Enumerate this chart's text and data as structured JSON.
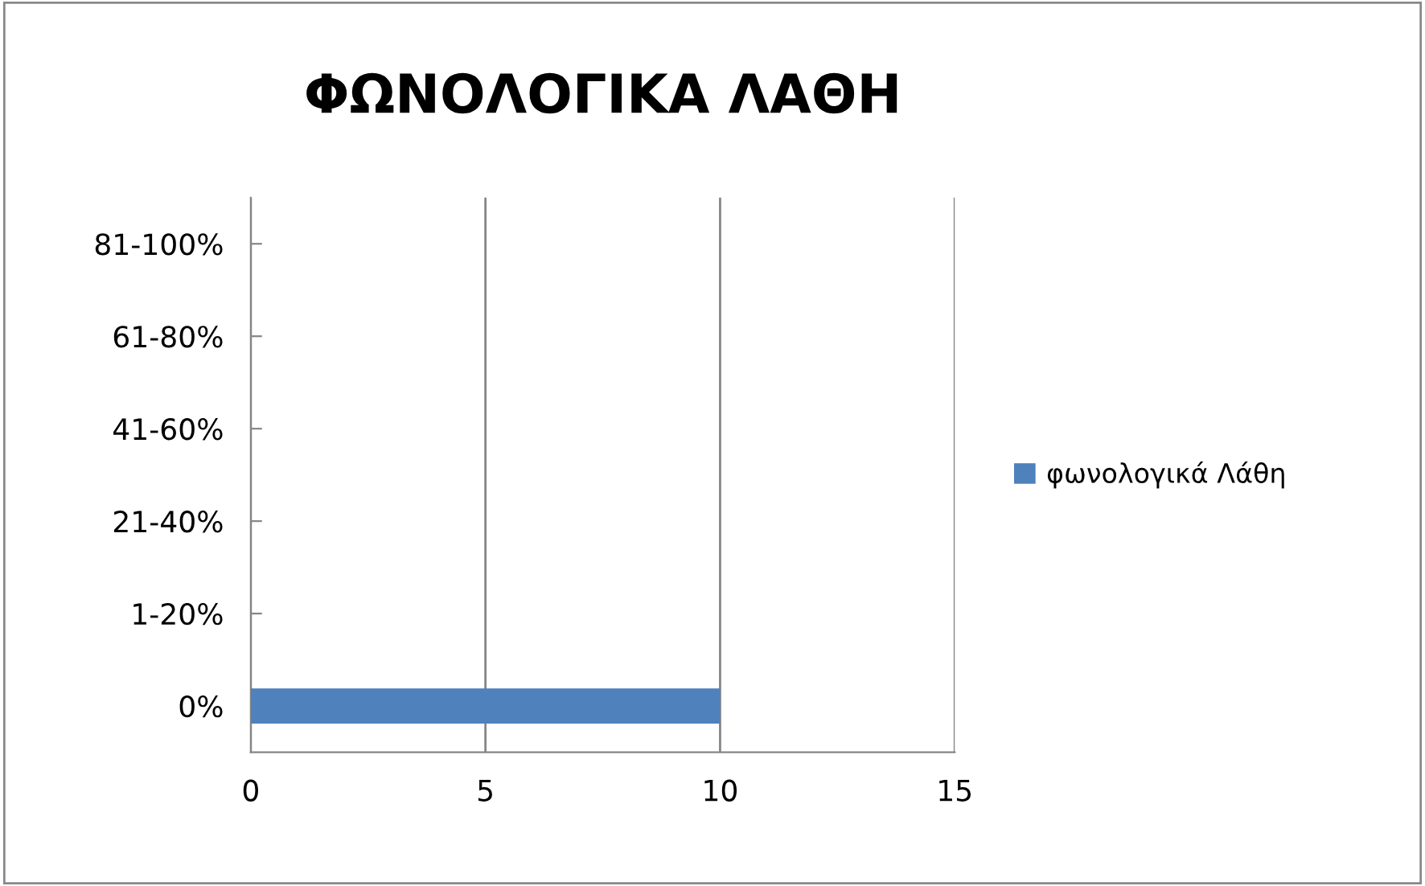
{
  "chart_data": {
    "type": "bar",
    "orientation": "horizontal",
    "title": "ΦΩΝΟΛΟΓΙΚΑ ΛΑΘΗ",
    "categories": [
      "81-100%",
      "61-80%",
      "41-60%",
      "21-40%",
      "1-20%",
      "0%"
    ],
    "series": [
      {
        "name": "φωνολογικά Λάθη",
        "color": "#4f81bd",
        "values": [
          0,
          0,
          0,
          0,
          0,
          10
        ]
      }
    ],
    "xlim": [
      0,
      15
    ],
    "xticks": [
      0,
      5,
      10,
      15
    ],
    "grid": "x",
    "legend": "right"
  }
}
